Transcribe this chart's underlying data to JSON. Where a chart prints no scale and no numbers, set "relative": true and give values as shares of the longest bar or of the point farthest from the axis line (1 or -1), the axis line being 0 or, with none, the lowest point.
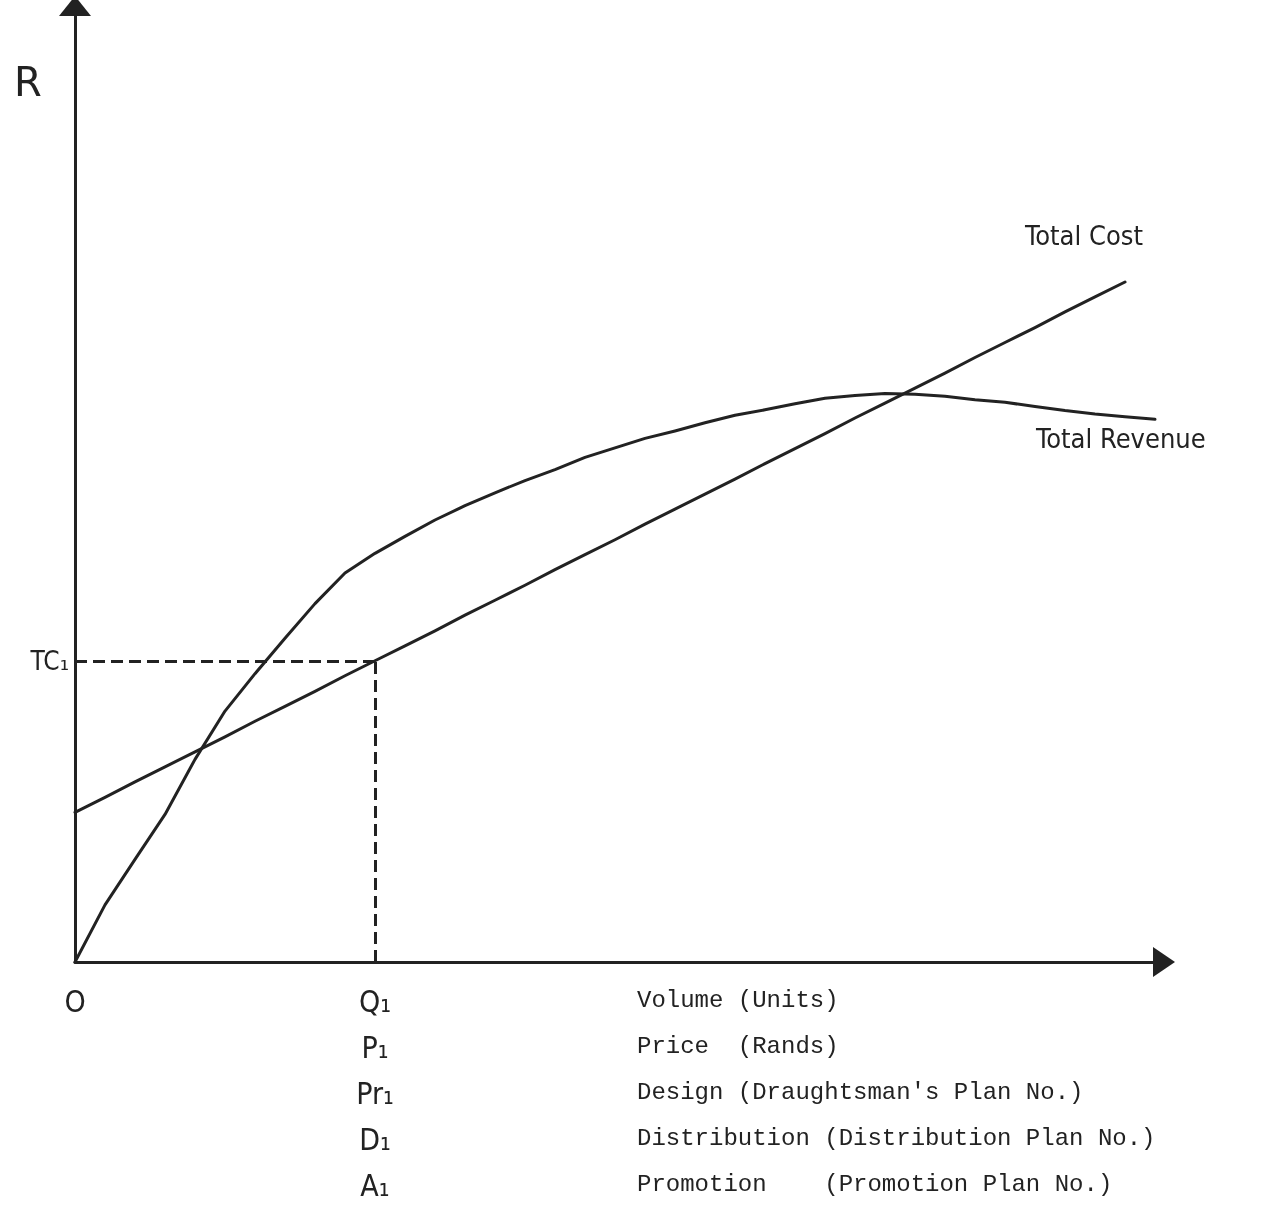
{
  "chart_data": {
    "type": "line",
    "relative": true,
    "ylabel": "R",
    "categories": [
      "O",
      null,
      null,
      null,
      null,
      null,
      null,
      null,
      null,
      null,
      "Q₁\nP₁\nPr₁\nD₁\nA₁",
      null,
      null,
      null,
      null,
      null,
      null,
      null,
      null,
      null,
      null,
      null,
      null,
      null,
      null,
      null,
      null,
      null,
      null,
      null,
      null,
      null,
      null,
      null,
      null,
      null,
      null
    ],
    "series": [
      {
        "name": "Total Cost",
        "color": "#222222",
        "values": [
          0.22,
          0.242,
          0.265,
          0.287,
          0.309,
          0.331,
          0.354,
          0.376,
          0.398,
          0.421,
          0.443,
          0.465,
          0.487,
          0.51,
          0.532,
          0.554,
          0.577,
          0.599,
          0.621,
          0.644,
          0.666,
          0.688,
          0.71,
          0.733,
          0.755,
          0.777,
          0.8,
          0.822,
          0.844,
          0.866,
          0.889,
          0.911,
          0.933,
          0.956,
          0.978,
          1.0,
          null
        ]
      },
      {
        "name": "Total Revenue",
        "color": "#222222",
        "values": [
          0,
          0.084,
          0.151,
          0.217,
          0.298,
          0.369,
          0.424,
          0.476,
          0.527,
          0.572,
          0.601,
          0.626,
          0.65,
          0.671,
          0.69,
          0.708,
          0.724,
          0.742,
          0.756,
          0.77,
          0.781,
          0.793,
          0.804,
          0.812,
          0.821,
          0.829,
          0.833,
          0.836,
          0.835,
          0.832,
          0.827,
          0.823,
          0.817,
          0.811,
          0.806,
          0.802,
          0.798
        ]
      }
    ],
    "ref_lines": [
      {
        "axis": "y",
        "value": 0.443,
        "label": "TC₁",
        "line_style": "dashed"
      },
      {
        "axis": "x",
        "value": "Q₁\nP₁\nPr₁\nD₁\nA₁",
        "line_style": "dashed"
      }
    ],
    "annotations": [
      "Volume (Units)",
      "Price  (Rands)",
      "Design (Draughtsman's Plan No.)",
      "Distribution (Distribution Plan No.)",
      "Promotion    (Promotion Plan No.)"
    ],
    "marker": "none",
    "line_style": "solid",
    "grid": false,
    "legend": false
  }
}
